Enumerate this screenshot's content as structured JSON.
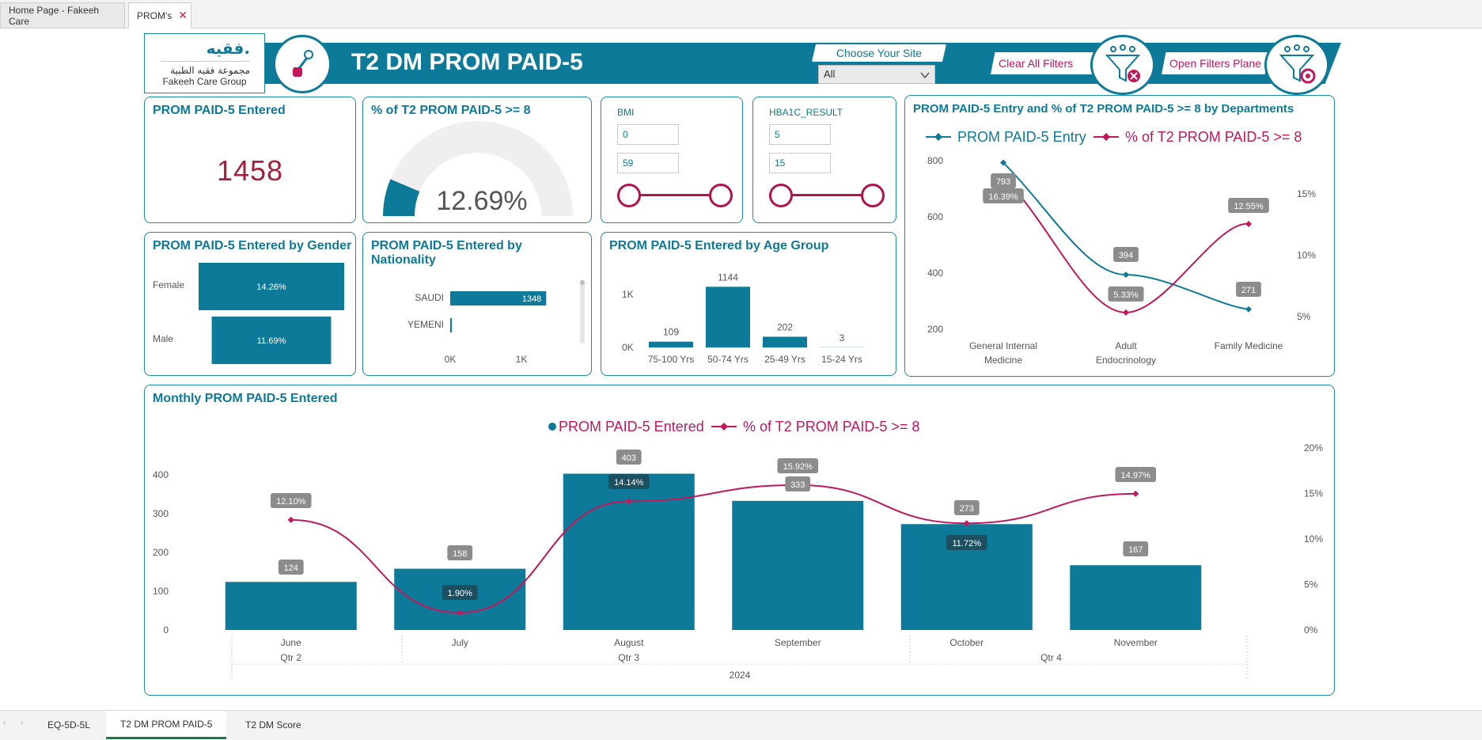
{
  "tabs": [
    {
      "label": "Home Page - Fakeeh Care"
    },
    {
      "label": "PROM's"
    }
  ],
  "header": {
    "logo_arabic_brand": "فقيه.",
    "logo_arabic": "مجموعة فقيه الطبية",
    "logo_english": "Fakeeh Care Group",
    "title": "T2 DM PROM PAID-5",
    "choose_site_label": "Choose Your Site",
    "site_value": "All",
    "clear_filters_label": "Clear All Filters",
    "open_filters_label": "Open Filters Plane",
    "colors": {
      "primary": "#0e7a99",
      "accent": "#c2185b"
    }
  },
  "kpi_entered": {
    "title": "PROM PAID-5 Entered",
    "value": "1458"
  },
  "kpi_gauge": {
    "title": "% of T2 PROM PAID-5 >= 8",
    "value": "12.69%",
    "percent": 12.69
  },
  "bmi": {
    "title": "BMI",
    "min": "0",
    "max": "59"
  },
  "hba1c": {
    "title": "HBA1C_RESULT",
    "min": "5",
    "max": "15"
  },
  "charts": {
    "gender": {
      "title": "PROM PAID-5 Entered by Gender"
    },
    "nationality": {
      "title": "PROM PAID-5 Entered by Nationality"
    },
    "age": {
      "title": "PROM PAID-5 Entered by Age Group"
    },
    "dept": {
      "title": "PROM PAID-5 Entry and % of T2 PROM PAID-5 >= 8 by Departments",
      "legend_entry": "PROM PAID-5 Entry",
      "legend_pct": "% of T2 PROM PAID-5  >= 8"
    },
    "monthly": {
      "title": "Monthly PROM PAID-5 Entered",
      "legend_entered": "PROM PAID-5 Entered",
      "legend_pct": "% of T2 PROM PAID-5  >= 8"
    }
  },
  "chart_data": [
    {
      "type": "bar",
      "id": "gender",
      "categories": [
        "Female",
        "Male"
      ],
      "values": [
        14.26,
        11.69
      ],
      "labels": [
        "14.26%",
        "11.69%"
      ]
    },
    {
      "type": "bar",
      "id": "nationality",
      "categories": [
        "SAUDI",
        "YEMENI"
      ],
      "values": [
        1348,
        24
      ],
      "labels": [
        "1348",
        ""
      ],
      "xticks": [
        "0K",
        "1K"
      ]
    },
    {
      "type": "bar",
      "id": "age",
      "categories": [
        "75-100 Yrs",
        "50-74 Yrs",
        "25-49 Yrs",
        "15-24 Yrs"
      ],
      "values": [
        109,
        1144,
        202,
        3
      ],
      "yticks": [
        "0K",
        "1K"
      ]
    },
    {
      "type": "line",
      "id": "dept",
      "categories": [
        "General Internal Medicine",
        "Adult Endocrinology",
        "Family Medicine"
      ],
      "series": [
        {
          "name": "PROM PAID-5 Entry",
          "values": [
            793,
            394,
            271
          ]
        },
        {
          "name": "% of T2 PROM PAID-5  >= 8",
          "values": [
            16.39,
            5.33,
            12.55
          ]
        }
      ],
      "labels_entry": [
        "793",
        "394",
        "271"
      ],
      "labels_pct": [
        "16.39%",
        "5.33%",
        "12.55%"
      ],
      "yticks_left": [
        "200",
        "400",
        "600",
        "800"
      ],
      "yticks_right": [
        "5%",
        "10%",
        "15%"
      ]
    },
    {
      "type": "bar",
      "id": "monthly",
      "categories": [
        "June",
        "July",
        "August",
        "September",
        "October",
        "November"
      ],
      "series": [
        {
          "name": "PROM PAID-5 Entered",
          "values": [
            124,
            158,
            403,
            333,
            273,
            167
          ]
        },
        {
          "name": "% of T2 PROM PAID-5  >= 8",
          "values": [
            12.1,
            1.9,
            14.14,
            15.92,
            11.72,
            14.97
          ]
        }
      ],
      "labels_entered": [
        "124",
        "158",
        "403",
        "333",
        "273",
        "167"
      ],
      "labels_pct": [
        "12.10%",
        "1.90%",
        "14.14%",
        "15.92%",
        "11.72%",
        "14.97%"
      ],
      "yticks_left": [
        "0",
        "100",
        "200",
        "300",
        "400"
      ],
      "yticks_right": [
        "0%",
        "5%",
        "10%",
        "15%",
        "20%"
      ],
      "quarters": [
        "Qtr 2",
        "Qtr 3",
        "Qtr 4"
      ],
      "year": "2024"
    }
  ],
  "bottom_tabs": [
    {
      "label": "EQ-5D-5L"
    },
    {
      "label": "T2 DM PROM PAID-5"
    },
    {
      "label": "T2 DM Score"
    }
  ]
}
